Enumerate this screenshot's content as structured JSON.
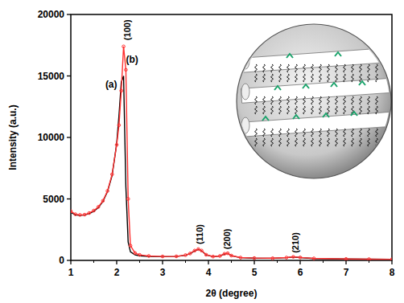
{
  "chart_data": {
    "type": "line",
    "x_label": "2θ (degree)",
    "y_label": "Intensity (a.u.)",
    "xlim": [
      1,
      8
    ],
    "ylim": [
      0,
      20000
    ],
    "xticks": [
      1,
      2,
      3,
      4,
      5,
      6,
      7,
      8
    ],
    "yticks": [
      0,
      5000,
      10000,
      15000,
      20000
    ],
    "grid": false,
    "x": [
      1.0,
      1.1,
      1.2,
      1.3,
      1.4,
      1.5,
      1.6,
      1.7,
      1.8,
      1.9,
      2.0,
      2.05,
      2.1,
      2.15,
      2.2,
      2.25,
      2.3,
      2.4,
      2.5,
      2.7,
      3.0,
      3.3,
      3.5,
      3.6,
      3.7,
      3.78,
      3.85,
      3.95,
      4.1,
      4.25,
      4.35,
      4.42,
      4.5,
      4.7,
      5.0,
      5.4,
      5.7,
      5.85,
      6.0,
      6.3,
      7.0,
      7.5,
      8.0
    ],
    "series": [
      {
        "name": "(a)",
        "color": "#000000",
        "marker": "none",
        "line_style": "solid",
        "values": [
          3900,
          3700,
          3650,
          3700,
          3800,
          4000,
          4300,
          4800,
          5600,
          6900,
          9500,
          11800,
          14500,
          15000,
          6000,
          1500,
          700,
          450,
          380,
          320,
          300,
          320,
          420,
          550,
          780,
          900,
          780,
          450,
          300,
          350,
          520,
          560,
          380,
          220,
          180,
          170,
          220,
          280,
          230,
          150,
          110,
          100,
          90
        ]
      },
      {
        "name": "(b)",
        "color": "#ff3030",
        "marker": "circle",
        "line_style": "solid",
        "values": [
          4000,
          3750,
          3700,
          3720,
          3850,
          4050,
          4350,
          4850,
          5650,
          7000,
          9400,
          11000,
          13800,
          17400,
          15500,
          5000,
          1200,
          600,
          450,
          360,
          320,
          330,
          430,
          560,
          800,
          920,
          800,
          460,
          310,
          360,
          540,
          580,
          390,
          230,
          190,
          175,
          230,
          290,
          240,
          160,
          115,
          100,
          90
        ]
      }
    ],
    "annotations": [
      {
        "text": "(100)",
        "x": 2.22,
        "y": 17900
      },
      {
        "text": "(110)",
        "x": 3.8,
        "y": 1300
      },
      {
        "text": "(200)",
        "x": 4.4,
        "y": 900
      },
      {
        "text": "(210)",
        "x": 5.9,
        "y": 600
      }
    ]
  }
}
